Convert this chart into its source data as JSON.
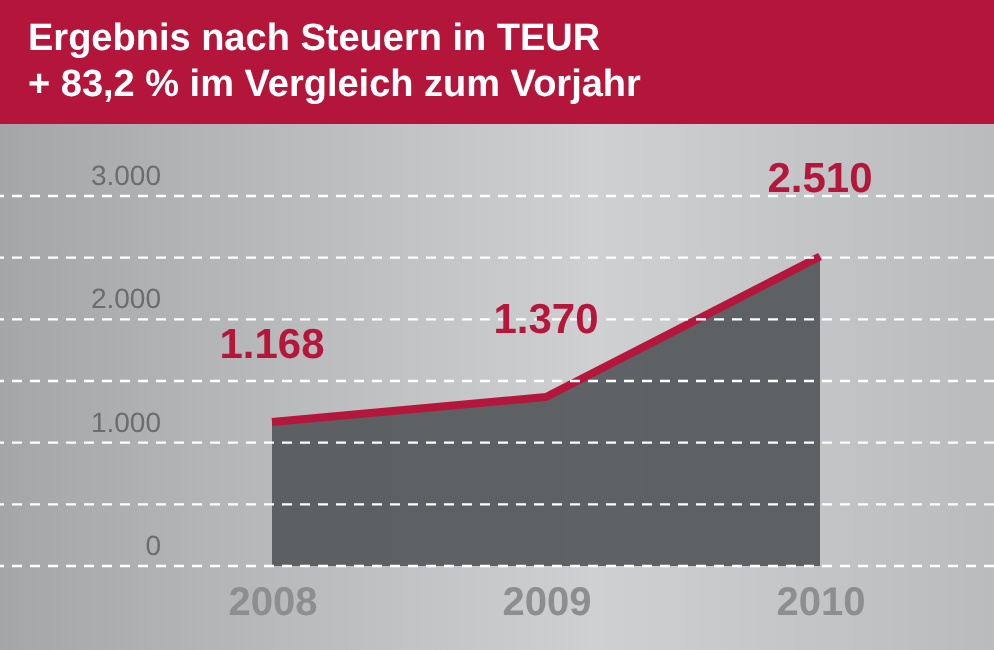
{
  "chart_data": {
    "type": "area",
    "title": "Ergebnis nach Steuern in TEUR",
    "subtitle": "+ 83,2 % im Vergleich zum Vorjahr",
    "categories": [
      "2008",
      "2009",
      "2010"
    ],
    "values": [
      1168,
      1370,
      2510
    ],
    "color": "#b5173c",
    "value_labels": [
      "1.168",
      "1.370",
      "2.510"
    ],
    "ylim": [
      0,
      3000
    ],
    "yticks": [
      {
        "value": 0,
        "label": "0"
      },
      {
        "value": 500,
        "label": null
      },
      {
        "value": 1000,
        "label": "1.000"
      },
      {
        "value": 1500,
        "label": null
      },
      {
        "value": 2000,
        "label": "2.000"
      },
      {
        "value": 2500,
        "label": null
      },
      {
        "value": 3000,
        "label": "3.000"
      }
    ],
    "grid": "y"
  }
}
